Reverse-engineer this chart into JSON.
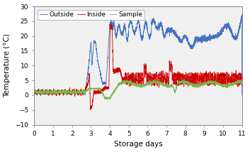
{
  "title": "",
  "xlabel": "Storage days",
  "ylabel": "Temperature (°C)",
  "xlim": [
    0,
    11
  ],
  "ylim": [
    -10,
    30
  ],
  "yticks": [
    -10,
    -5,
    0,
    5,
    10,
    15,
    20,
    25,
    30
  ],
  "xticks": [
    0,
    1,
    2,
    3,
    4,
    5,
    6,
    7,
    8,
    9,
    10,
    11
  ],
  "outside_color": "#4472C4",
  "inside_color": "#CC0000",
  "sample_color": "#7AB648",
  "legend_labels": [
    "Outside",
    "Inside",
    "Sample"
  ],
  "background_color": "#FFFFFF",
  "plot_bg": "#F0F0F0",
  "seed": 12
}
